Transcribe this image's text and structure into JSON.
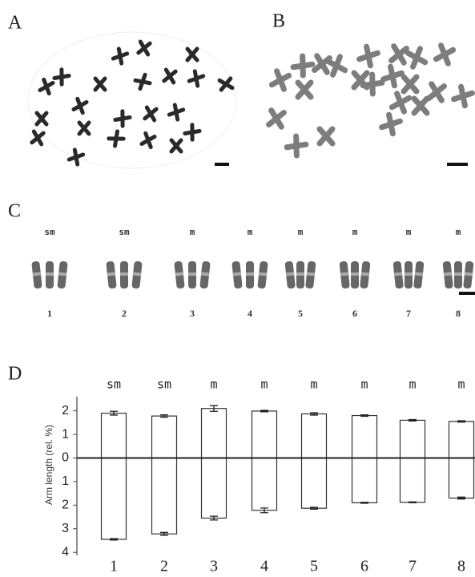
{
  "panels": {
    "A": {
      "label": "A"
    },
    "B": {
      "label": "B"
    },
    "C": {
      "label": "C",
      "types": [
        "sm",
        "sm",
        "m",
        "m",
        "m",
        "m",
        "m",
        "m"
      ],
      "numbers": [
        "1",
        "2",
        "3",
        "4",
        "5",
        "6",
        "7",
        "8"
      ]
    },
    "D": {
      "label": "D"
    }
  },
  "chart_data": {
    "type": "idiogram",
    "y_label": "Arm length (rel. %)",
    "categories": [
      "1",
      "2",
      "3",
      "4",
      "5",
      "6",
      "7",
      "8"
    ],
    "annotations": [
      "sm",
      "sm",
      "m",
      "m",
      "m",
      "m",
      "m",
      "m"
    ],
    "series": [
      {
        "values": [
          1.9,
          1.78,
          2.1,
          1.99,
          1.87,
          1.8,
          1.6,
          1.55
        ],
        "errors": [
          0.08,
          0.05,
          0.12,
          0.03,
          0.05,
          0.03,
          0.03,
          0.03
        ],
        "color": "#ffffff"
      },
      {
        "values": [
          -3.45,
          -3.22,
          -2.55,
          -2.22,
          -2.13,
          -1.9,
          -1.88,
          -1.7
        ],
        "errors": [
          0.03,
          0.06,
          0.08,
          0.1,
          0.04,
          0.02,
          0.02,
          0.04
        ],
        "color": "#ffffff"
      }
    ],
    "ylim": [
      -4.13,
      2.6
    ],
    "yticks": [
      2,
      1,
      0,
      {
        "value": -1,
        "label": "1"
      },
      {
        "value": -2,
        "label": "2"
      },
      {
        "value": -3,
        "label": "3"
      },
      {
        "value": -4,
        "label": "4"
      }
    ]
  }
}
